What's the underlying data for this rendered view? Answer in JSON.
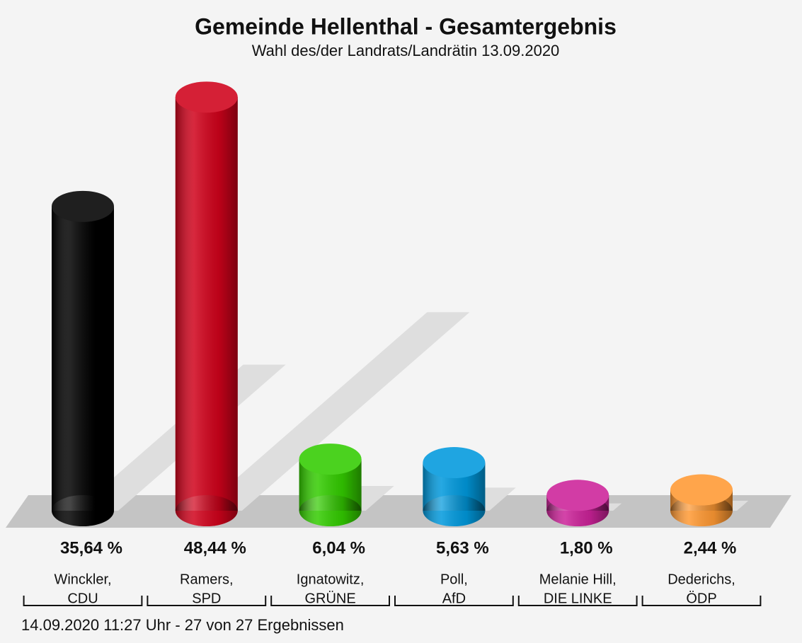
{
  "chart_data": {
    "type": "cylinder-bar",
    "title": "Gemeinde Hellenthal - Gesamtergebnis",
    "subtitle": "Wahl des/der Landrats/Landrätin 13.09.2020",
    "categories": [
      [
        "Winckler,",
        "CDU"
      ],
      [
        "Ramers,",
        "SPD"
      ],
      [
        "Ignatowitz,",
        "GRÜNE"
      ],
      [
        "Poll,",
        "AfD"
      ],
      [
        "Melanie Hill,",
        "DIE LINKE"
      ],
      [
        "Dederichs,",
        "ÖDP"
      ]
    ],
    "values": [
      35.64,
      48.44,
      6.04,
      5.63,
      1.8,
      2.44
    ],
    "value_labels": [
      "35,64 %",
      "48,44 %",
      "6,04 %",
      "5,63 %",
      "1,80 %",
      "2,44 %"
    ],
    "colors": [
      "#000000",
      "#d0021b",
      "#33cc00",
      "#0099dd",
      "#cc2299",
      "#ff9933"
    ],
    "footer": "14.09.2020 11:27 Uhr - 27 von 27 Ergebnissen"
  }
}
